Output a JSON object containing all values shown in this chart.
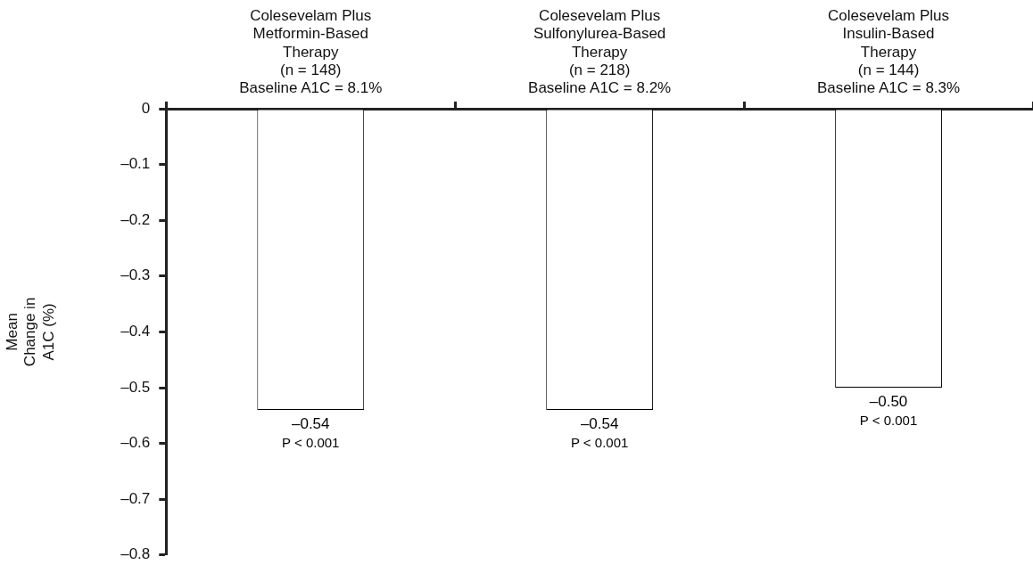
{
  "chart_data": {
    "type": "bar",
    "ylabel": "Mean\nChange in\nA1C (%)",
    "categories": [
      "Colesevelam Plus\nMetformin-Based\nTherapy\n(n = 148)\nBaseline A1C = 8.1%",
      "Colesevelam Plus\nSulfonylurea-Based\nTherapy\n(n = 218)\nBaseline A1C = 8.2%",
      "Colesevelam Plus\nInsulin-Based\nTherapy\n(n = 144)\nBaseline A1C = 8.3%"
    ],
    "values": [
      -0.54,
      -0.54,
      -0.5
    ],
    "color": "#ffffff",
    "value_labels": [
      "–0.54",
      "–0.54",
      "–0.50"
    ],
    "annotations": [
      {
        "text": "P < 0.001",
        "x": "Colesevelam Plus\nMetformin-Based\nTherapy\n(n = 148)\nBaseline A1C = 8.1%",
        "y": -0.54
      },
      {
        "text": "P < 0.001",
        "x": "Colesevelam Plus\nSulfonylurea-Based\nTherapy\n(n = 218)\nBaseline A1C = 8.2%",
        "y": -0.54
      },
      {
        "text": "P < 0.001",
        "x": "Colesevelam Plus\nInsulin-Based\nTherapy\n(n = 144)\nBaseline A1C = 8.3%",
        "y": -0.5
      }
    ],
    "ylim": [
      -0.8,
      0
    ],
    "yticks": [
      0,
      {
        "value": -0.1,
        "label": "–0.1"
      },
      {
        "value": -0.2,
        "label": "–0.2"
      },
      {
        "value": -0.3,
        "label": "–0.3"
      },
      {
        "value": -0.4,
        "label": "–0.4"
      },
      {
        "value": -0.5,
        "label": "–0.5"
      },
      {
        "value": -0.6,
        "label": "–0.6"
      },
      {
        "value": -0.7,
        "label": "–0.7"
      },
      {
        "value": -0.8,
        "label": "–0.8"
      }
    ],
    "grid": false,
    "legend": false
  }
}
